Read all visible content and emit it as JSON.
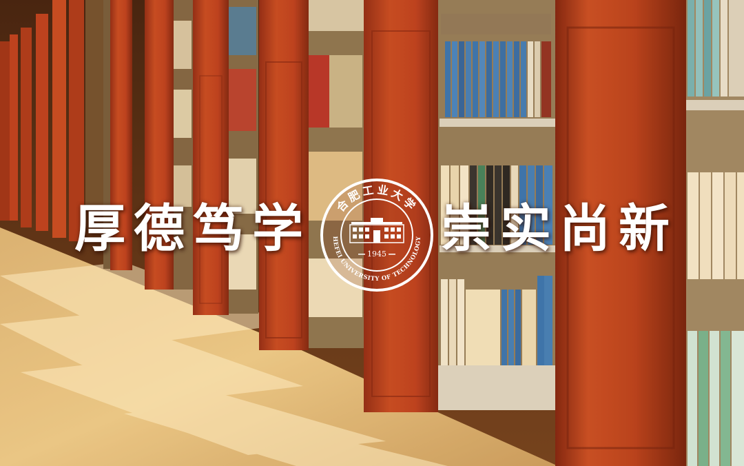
{
  "motto": {
    "left": "厚德笃学",
    "right": "崇实尚新"
  },
  "seal": {
    "top_text": "合肥工业大学",
    "bottom_text": "HEFEI UNIVERSITY OF TECHNOLOGY",
    "year": "1945"
  },
  "colors": {
    "shelf_red": "#b8391a",
    "shelf_red_dark": "#8c2410",
    "floor_warm": "#e8c27e",
    "sunlight": "#fff1c9",
    "text": "#ffffff"
  }
}
